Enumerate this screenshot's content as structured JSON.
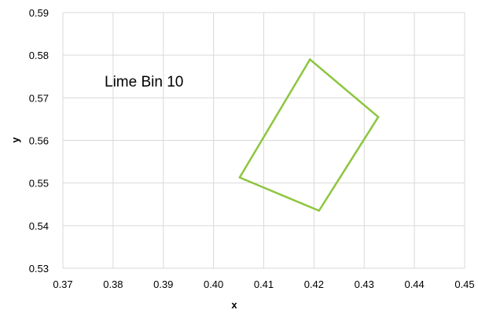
{
  "chart_data": {
    "type": "line",
    "title": "",
    "xlabel": "x",
    "ylabel": "y",
    "xlim": [
      0.37,
      0.45
    ],
    "ylim": [
      0.53,
      0.59
    ],
    "x_ticks": [
      0.37,
      0.38,
      0.39,
      0.4,
      0.41,
      0.42,
      0.43,
      0.44,
      0.45
    ],
    "x_tick_labels": [
      "0.37",
      "0.38",
      "0.39",
      "0.40",
      "0.41",
      "0.42",
      "0.43",
      "0.44",
      "0.45"
    ],
    "y_ticks": [
      0.53,
      0.54,
      0.55,
      0.56,
      0.57,
      0.58,
      0.59
    ],
    "y_tick_labels": [
      "0.53",
      "0.54",
      "0.55",
      "0.56",
      "0.57",
      "0.58",
      "0.59"
    ],
    "grid": true,
    "annotation": "Lime Bin 10",
    "series": [
      {
        "color": "#8cc63f",
        "points": [
          {
            "x": 0.4052,
            "y": 0.5513
          },
          {
            "x": 0.4192,
            "y": 0.579
          },
          {
            "x": 0.4328,
            "y": 0.5655
          },
          {
            "x": 0.421,
            "y": 0.5435
          },
          {
            "x": 0.4052,
            "y": 0.5513
          }
        ]
      }
    ]
  }
}
